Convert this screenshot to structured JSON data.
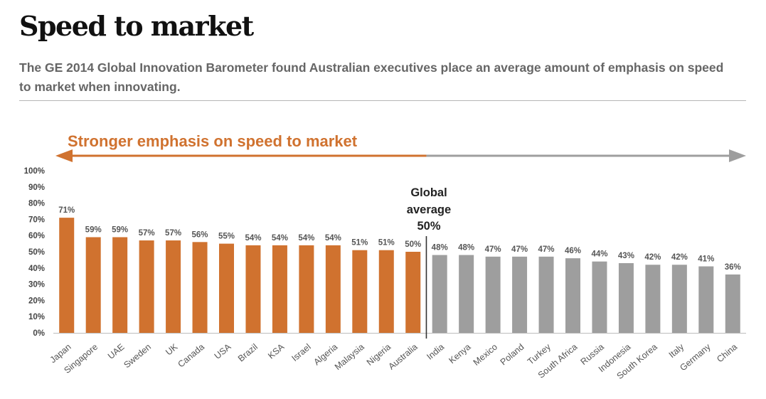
{
  "header": {
    "title": "Speed to market",
    "subtitle": "The GE 2014 Global Innovation Barometer found Australian executives place an average amount of emphasis on speed to market when innovating."
  },
  "colors": {
    "above_average": "#d0722f",
    "below_average": "#9e9e9e",
    "arrow_gray": "#9e9e9e"
  },
  "chart_data": {
    "type": "bar",
    "title": "",
    "xlabel": "",
    "ylabel": "",
    "ylim": [
      0,
      100
    ],
    "y_ticks": [
      "0%",
      "10%",
      "20%",
      "30%",
      "40%",
      "50%",
      "60%",
      "70%",
      "80%",
      "90%",
      "100%"
    ],
    "categories": [
      "Japan",
      "Singapore",
      "UAE",
      "Sweden",
      "UK",
      "Canada",
      "USA",
      "Brazil",
      "KSA",
      "Israel",
      "Algeria",
      "Malaysia",
      "Nigeria",
      "Australia",
      "India",
      "Kenya",
      "Mexico",
      "Poland",
      "Turkey",
      "South Africa",
      "Russia",
      "Indonesia",
      "South Korea",
      "Italy",
      "Germany",
      "China"
    ],
    "values": [
      71,
      59,
      59,
      57,
      57,
      56,
      55,
      54,
      54,
      54,
      54,
      51,
      51,
      50,
      48,
      48,
      47,
      47,
      47,
      46,
      44,
      43,
      42,
      42,
      41,
      36
    ],
    "value_labels": [
      "71%",
      "59%",
      "59%",
      "57%",
      "57%",
      "56%",
      "55%",
      "54%",
      "54%",
      "54%",
      "54%",
      "51%",
      "51%",
      "50%",
      "48%",
      "48%",
      "47%",
      "47%",
      "47%",
      "46%",
      "44%",
      "43%",
      "42%",
      "42%",
      "41%",
      "36%"
    ],
    "highlighted_count": 14,
    "annotations": {
      "arrow_label": "Stronger emphasis on speed to market",
      "average_line1": "Global",
      "average_line2": "average",
      "average_value": "50%"
    },
    "grid": false
  }
}
